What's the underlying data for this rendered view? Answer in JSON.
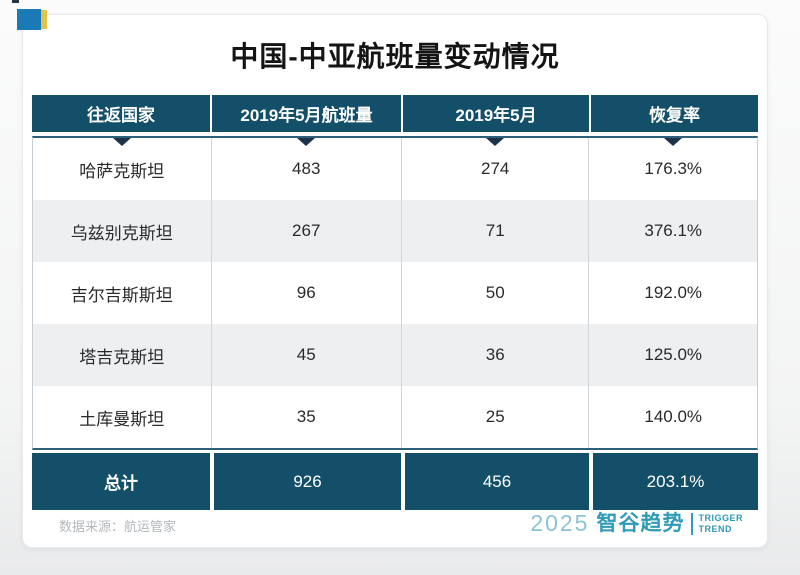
{
  "page": {
    "title": "中国-中亚航班量变动情况",
    "source_note": "数据来源：航运管家"
  },
  "table": {
    "headers": [
      "往返国家",
      "2019年5月航班量",
      "2019年5月",
      "恢复率"
    ],
    "rows": [
      {
        "country": "哈萨克斯坦",
        "flights_2019": "483",
        "flights_current": "274",
        "recovery": "176.3%"
      },
      {
        "country": "乌兹别克斯坦",
        "flights_2019": "267",
        "flights_current": "71",
        "recovery": "376.1%"
      },
      {
        "country": "吉尔吉斯斯坦",
        "flights_2019": "96",
        "flights_current": "50",
        "recovery": "192.0%"
      },
      {
        "country": "塔吉克斯坦",
        "flights_2019": "45",
        "flights_current": "36",
        "recovery": "125.0%"
      },
      {
        "country": "土库曼斯坦",
        "flights_2019": "35",
        "flights_current": "25",
        "recovery": "140.0%"
      }
    ],
    "total": {
      "label": "总计",
      "flights_2019": "926",
      "flights_current": "456",
      "recovery": "203.1%"
    }
  },
  "branding": {
    "year": "2025",
    "name": "智谷趋势",
    "tagline_line1": "TRIGGER",
    "tagline_line2": "TREND"
  },
  "colors": {
    "header_bg": "#134f69",
    "total_bg": "#134f69",
    "row_alt_bg": "#edeff1",
    "triangle": "#1c334a",
    "body_border": "#2d5f7a",
    "brand_teal": "#2f9bb7",
    "brand_year_teal": "#8cc3d6",
    "flag_blue": "#1a7ab5",
    "flag_yellow": "#e2c34b",
    "source_text": "#b3b8bc"
  },
  "chart_data": {
    "type": "table",
    "title": "中国-中亚航班量变动情况",
    "columns": [
      "往返国家",
      "2019年5月航班量",
      "2019年5月",
      "恢复率"
    ],
    "rows": [
      [
        "哈萨克斯坦",
        483,
        274,
        "176.3%"
      ],
      [
        "乌兹别克斯坦",
        267,
        71,
        "376.1%"
      ],
      [
        "吉尔吉斯斯坦",
        96,
        50,
        "192.0%"
      ],
      [
        "塔吉克斯坦",
        45,
        36,
        "125.0%"
      ],
      [
        "土库曼斯坦",
        35,
        25,
        "140.0%"
      ],
      [
        "总计",
        926,
        456,
        "203.1%"
      ]
    ],
    "source": "数据来源：航运管家"
  }
}
